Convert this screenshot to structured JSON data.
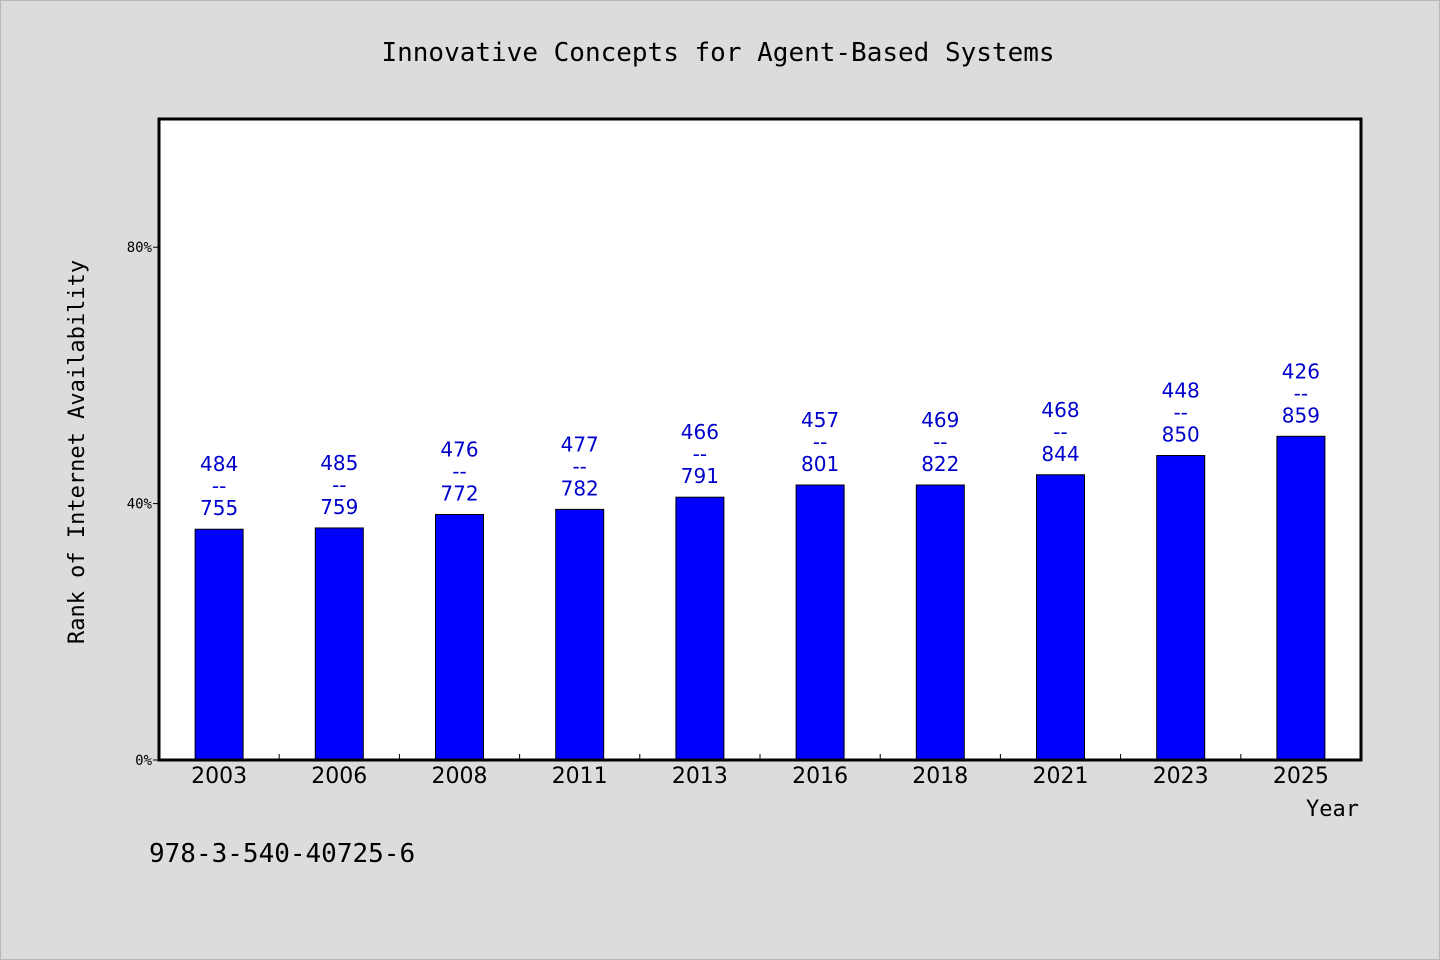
{
  "chart_data": {
    "type": "bar",
    "title": "Innovative Concepts for Agent-Based Systems",
    "xlabel": "Year",
    "ylabel": "Rank of Internet Availability",
    "categories": [
      "2003",
      "2006",
      "2008",
      "2011",
      "2013",
      "2016",
      "2018",
      "2021",
      "2023",
      "2025"
    ],
    "series": [
      {
        "values": [
          36,
          36.2,
          38.3,
          39.1,
          41,
          42.9,
          42.9,
          44.5,
          47.5,
          50.5
        ],
        "labels": [
          "484\n--\n755",
          "485\n--\n759",
          "476\n--\n772",
          "477\n--\n782",
          "466\n--\n791",
          "457\n--\n801",
          "469\n--\n822",
          "468\n--\n844",
          "448\n--\n850",
          "426\n--\n859"
        ]
      }
    ],
    "ylim": [
      0,
      100
    ],
    "yticks": [
      0,
      40,
      80
    ],
    "ytick_labels": [
      "0%",
      "40%",
      "80%"
    ],
    "grid": false,
    "bar_color": "#0000ff",
    "label_color": "#0000cc",
    "background": "#dcdcdc",
    "plot_background": "#ffffff"
  },
  "footer": {
    "isbn": "978-3-540-40725-6"
  }
}
